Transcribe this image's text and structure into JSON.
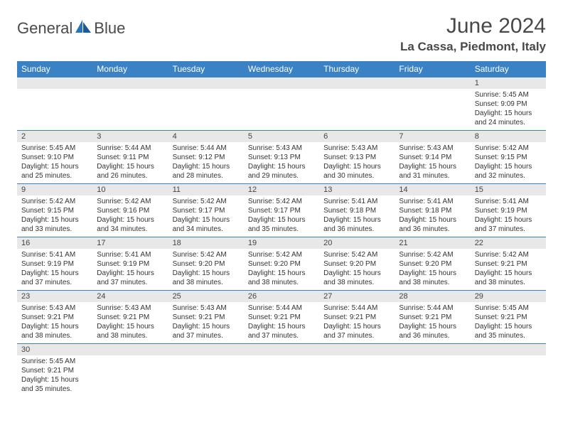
{
  "brand": {
    "name1": "General",
    "name2": "Blue"
  },
  "title": "June 2024",
  "location": "La Cassa, Piedmont, Italy",
  "colors": {
    "header_bg": "#3a82c4",
    "header_text": "#ffffff",
    "daynum_bg": "#e8e8e8",
    "border": "#3a82c4",
    "logo_gray": "#4a4a4a",
    "logo_blue": "#2a73b8"
  },
  "weekdays": [
    "Sunday",
    "Monday",
    "Tuesday",
    "Wednesday",
    "Thursday",
    "Friday",
    "Saturday"
  ],
  "weeks": [
    [
      null,
      null,
      null,
      null,
      null,
      null,
      {
        "n": "1",
        "sr": "5:45 AM",
        "ss": "9:09 PM",
        "dl": "15 hours and 24 minutes."
      }
    ],
    [
      {
        "n": "2",
        "sr": "5:45 AM",
        "ss": "9:10 PM",
        "dl": "15 hours and 25 minutes."
      },
      {
        "n": "3",
        "sr": "5:44 AM",
        "ss": "9:11 PM",
        "dl": "15 hours and 26 minutes."
      },
      {
        "n": "4",
        "sr": "5:44 AM",
        "ss": "9:12 PM",
        "dl": "15 hours and 28 minutes."
      },
      {
        "n": "5",
        "sr": "5:43 AM",
        "ss": "9:13 PM",
        "dl": "15 hours and 29 minutes."
      },
      {
        "n": "6",
        "sr": "5:43 AM",
        "ss": "9:13 PM",
        "dl": "15 hours and 30 minutes."
      },
      {
        "n": "7",
        "sr": "5:43 AM",
        "ss": "9:14 PM",
        "dl": "15 hours and 31 minutes."
      },
      {
        "n": "8",
        "sr": "5:42 AM",
        "ss": "9:15 PM",
        "dl": "15 hours and 32 minutes."
      }
    ],
    [
      {
        "n": "9",
        "sr": "5:42 AM",
        "ss": "9:15 PM",
        "dl": "15 hours and 33 minutes."
      },
      {
        "n": "10",
        "sr": "5:42 AM",
        "ss": "9:16 PM",
        "dl": "15 hours and 34 minutes."
      },
      {
        "n": "11",
        "sr": "5:42 AM",
        "ss": "9:17 PM",
        "dl": "15 hours and 34 minutes."
      },
      {
        "n": "12",
        "sr": "5:42 AM",
        "ss": "9:17 PM",
        "dl": "15 hours and 35 minutes."
      },
      {
        "n": "13",
        "sr": "5:41 AM",
        "ss": "9:18 PM",
        "dl": "15 hours and 36 minutes."
      },
      {
        "n": "14",
        "sr": "5:41 AM",
        "ss": "9:18 PM",
        "dl": "15 hours and 36 minutes."
      },
      {
        "n": "15",
        "sr": "5:41 AM",
        "ss": "9:19 PM",
        "dl": "15 hours and 37 minutes."
      }
    ],
    [
      {
        "n": "16",
        "sr": "5:41 AM",
        "ss": "9:19 PM",
        "dl": "15 hours and 37 minutes."
      },
      {
        "n": "17",
        "sr": "5:41 AM",
        "ss": "9:19 PM",
        "dl": "15 hours and 37 minutes."
      },
      {
        "n": "18",
        "sr": "5:42 AM",
        "ss": "9:20 PM",
        "dl": "15 hours and 38 minutes."
      },
      {
        "n": "19",
        "sr": "5:42 AM",
        "ss": "9:20 PM",
        "dl": "15 hours and 38 minutes."
      },
      {
        "n": "20",
        "sr": "5:42 AM",
        "ss": "9:20 PM",
        "dl": "15 hours and 38 minutes."
      },
      {
        "n": "21",
        "sr": "5:42 AM",
        "ss": "9:20 PM",
        "dl": "15 hours and 38 minutes."
      },
      {
        "n": "22",
        "sr": "5:42 AM",
        "ss": "9:21 PM",
        "dl": "15 hours and 38 minutes."
      }
    ],
    [
      {
        "n": "23",
        "sr": "5:43 AM",
        "ss": "9:21 PM",
        "dl": "15 hours and 38 minutes."
      },
      {
        "n": "24",
        "sr": "5:43 AM",
        "ss": "9:21 PM",
        "dl": "15 hours and 38 minutes."
      },
      {
        "n": "25",
        "sr": "5:43 AM",
        "ss": "9:21 PM",
        "dl": "15 hours and 37 minutes."
      },
      {
        "n": "26",
        "sr": "5:44 AM",
        "ss": "9:21 PM",
        "dl": "15 hours and 37 minutes."
      },
      {
        "n": "27",
        "sr": "5:44 AM",
        "ss": "9:21 PM",
        "dl": "15 hours and 37 minutes."
      },
      {
        "n": "28",
        "sr": "5:44 AM",
        "ss": "9:21 PM",
        "dl": "15 hours and 36 minutes."
      },
      {
        "n": "29",
        "sr": "5:45 AM",
        "ss": "9:21 PM",
        "dl": "15 hours and 35 minutes."
      }
    ],
    [
      {
        "n": "30",
        "sr": "5:45 AM",
        "ss": "9:21 PM",
        "dl": "15 hours and 35 minutes."
      },
      null,
      null,
      null,
      null,
      null,
      null
    ]
  ],
  "labels": {
    "sunrise": "Sunrise: ",
    "sunset": "Sunset: ",
    "daylight": "Daylight: "
  }
}
